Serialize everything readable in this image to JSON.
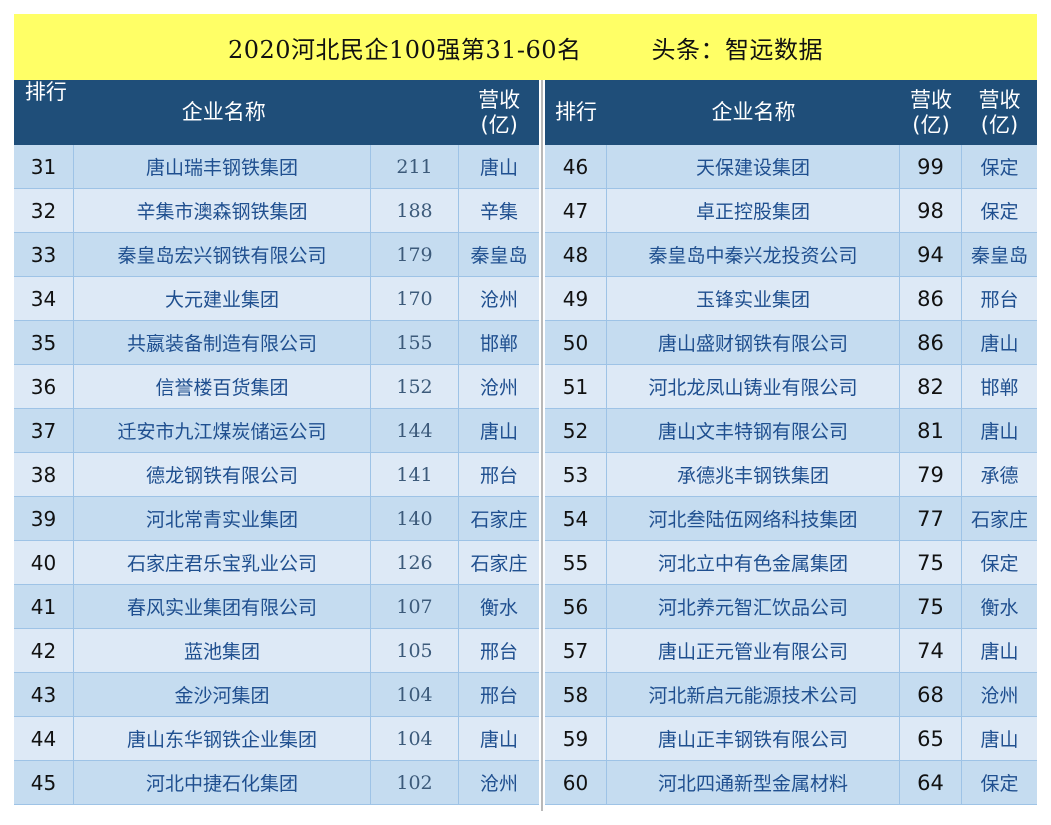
{
  "title": {
    "main": "2020河北民企100强第31-60名",
    "source": "头条：智远数据"
  },
  "headers": {
    "rank": "排行",
    "name": "企业名称",
    "revenue_line1": "营收",
    "revenue_line2": "(亿)",
    "revenue2_line1": "营收",
    "revenue2_line2": "(亿)"
  },
  "left_rows": [
    {
      "rank": "31",
      "name": "唐山瑞丰钢铁集团",
      "revenue": "211",
      "city": "唐山"
    },
    {
      "rank": "32",
      "name": "辛集市澳森钢铁集团",
      "revenue": "188",
      "city": "辛集"
    },
    {
      "rank": "33",
      "name": "秦皇岛宏兴钢铁有限公司",
      "revenue": "179",
      "city": "秦皇岛"
    },
    {
      "rank": "34",
      "name": "大元建业集团",
      "revenue": "170",
      "city": "沧州"
    },
    {
      "rank": "35",
      "name": "共嬴装备制造有限公司",
      "revenue": "155",
      "city": "邯郸"
    },
    {
      "rank": "36",
      "name": "信誉楼百货集团",
      "revenue": "152",
      "city": "沧州"
    },
    {
      "rank": "37",
      "name": "迁安市九江煤炭储运公司",
      "revenue": "144",
      "city": "唐山"
    },
    {
      "rank": "38",
      "name": "德龙钢铁有限公司",
      "revenue": "141",
      "city": "邢台"
    },
    {
      "rank": "39",
      "name": "河北常青实业集团",
      "revenue": "140",
      "city": "石家庄"
    },
    {
      "rank": "40",
      "name": "石家庄君乐宝乳业公司",
      "revenue": "126",
      "city": "石家庄"
    },
    {
      "rank": "41",
      "name": "春风实业集团有限公司",
      "revenue": "107",
      "city": "衡水"
    },
    {
      "rank": "42",
      "name": "蓝池集团",
      "revenue": "105",
      "city": "邢台"
    },
    {
      "rank": "43",
      "name": "金沙河集团",
      "revenue": "104",
      "city": "邢台"
    },
    {
      "rank": "44",
      "name": "唐山东华钢铁企业集团",
      "revenue": "104",
      "city": "唐山"
    },
    {
      "rank": "45",
      "name": "河北中捷石化集团",
      "revenue": "102",
      "city": "沧州"
    }
  ],
  "right_rows": [
    {
      "rank": "46",
      "name": "天保建设集团",
      "revenue": "99",
      "city": "保定"
    },
    {
      "rank": "47",
      "name": "卓正控股集团",
      "revenue": "98",
      "city": "保定"
    },
    {
      "rank": "48",
      "name": "秦皇岛中秦兴龙投资公司",
      "revenue": "94",
      "city": "秦皇岛"
    },
    {
      "rank": "49",
      "name": "玉锋实业集团",
      "revenue": "86",
      "city": "邢台"
    },
    {
      "rank": "50",
      "name": "唐山盛财钢铁有限公司",
      "revenue": "86",
      "city": "唐山"
    },
    {
      "rank": "51",
      "name": "河北龙凤山铸业有限公司",
      "revenue": "82",
      "city": "邯郸"
    },
    {
      "rank": "52",
      "name": "唐山文丰特钢有限公司",
      "revenue": "81",
      "city": "唐山"
    },
    {
      "rank": "53",
      "name": "承德兆丰钢铁集团",
      "revenue": "79",
      "city": "承德"
    },
    {
      "rank": "54",
      "name": "河北叁陆伍网络科技集团",
      "revenue": "77",
      "city": "石家庄"
    },
    {
      "rank": "55",
      "name": "河北立中有色金属集团",
      "revenue": "75",
      "city": "保定"
    },
    {
      "rank": "56",
      "name": "河北养元智汇饮品公司",
      "revenue": "75",
      "city": "衡水"
    },
    {
      "rank": "57",
      "name": "唐山正元管业有限公司",
      "revenue": "74",
      "city": "唐山"
    },
    {
      "rank": "58",
      "name": "河北新启元能源技术公司",
      "revenue": "68",
      "city": "沧州"
    },
    {
      "rank": "59",
      "name": "唐山正丰钢铁有限公司",
      "revenue": "65",
      "city": "唐山"
    },
    {
      "rank": "60",
      "name": "河北四通新型金属材料",
      "revenue": "64",
      "city": "保定"
    }
  ]
}
